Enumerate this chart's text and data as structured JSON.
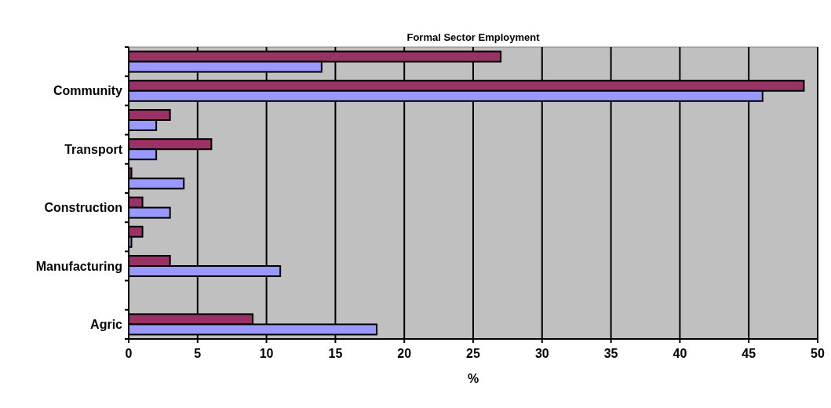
{
  "chart_data": {
    "type": "bar",
    "orientation": "horizontal",
    "title": "Formal Sector Employment",
    "xlabel": "%",
    "categories": [
      null,
      "Community",
      null,
      "Transport",
      null,
      "Construction",
      null,
      "Manufacturing",
      null,
      "Agric"
    ],
    "series": [
      {
        "color": "#993366",
        "values": [
          27,
          49,
          3,
          6,
          0.2,
          1,
          1,
          3,
          0,
          9
        ]
      },
      {
        "color": "#9999ff",
        "values": [
          14,
          46,
          2,
          2,
          4,
          3,
          0.2,
          11,
          0,
          18
        ]
      }
    ],
    "xlim": [
      0,
      50
    ],
    "xticks": [
      0,
      5,
      10,
      15,
      20,
      25,
      30,
      35,
      40,
      45,
      50
    ],
    "grid": "x"
  }
}
